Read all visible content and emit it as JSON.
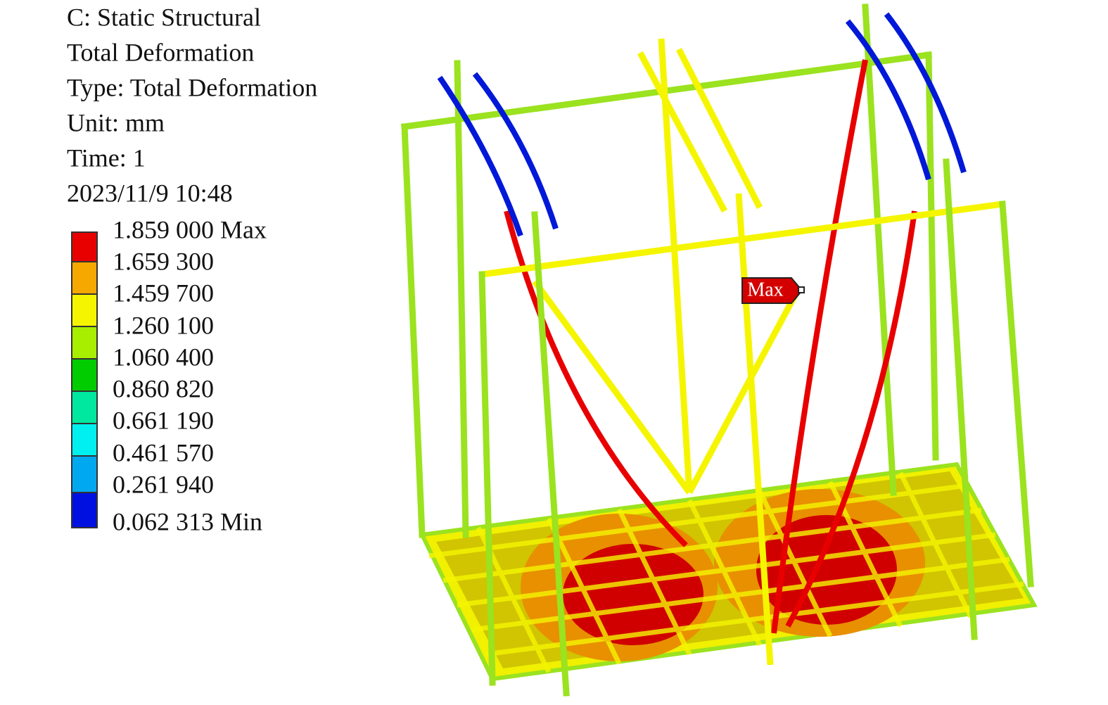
{
  "header": {
    "lines": [
      "C: Static Structural",
      "Total Deformation",
      "Type: Total Deformation",
      "Unit: mm",
      "Time: 1",
      "2023/11/9 10:48"
    ]
  },
  "legend": {
    "labels": [
      "1.859 000 Max",
      "1.659 300",
      "1.459 700",
      "1.260 100",
      "1.060 400",
      "0.860 820",
      "0.661 190",
      "0.461 570",
      "0.261 940",
      "0.062 313 Min"
    ]
  },
  "probe": {
    "label": "Max"
  }
}
